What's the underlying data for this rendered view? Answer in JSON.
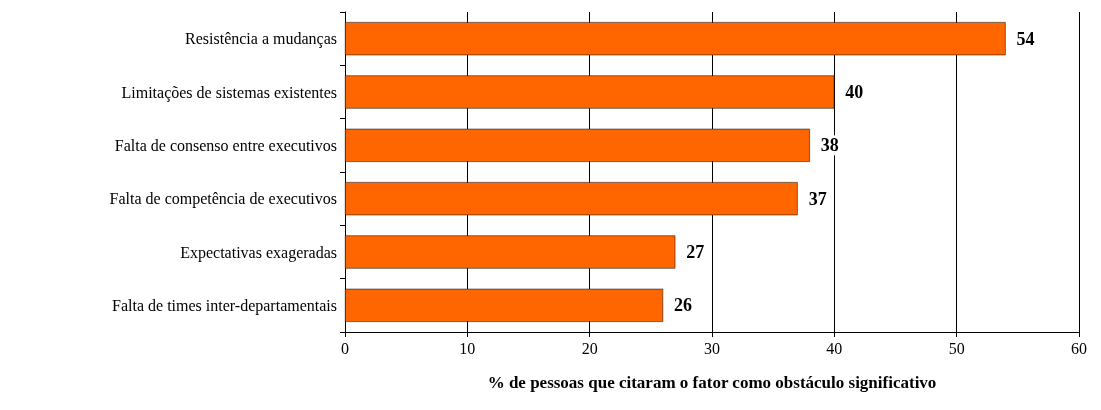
{
  "chart_data": {
    "type": "bar",
    "orientation": "horizontal",
    "xlabel": "% de pessoas que citaram o fator como obstáculo significativo",
    "categories": [
      "Resistência a mudanças",
      "Limitações de sistemas existentes",
      "Falta de consenso entre executivos",
      "Falta de competência de executivos",
      "Expectativas exageradas",
      "Falta de times inter-departamentais"
    ],
    "values": [
      54,
      40,
      38,
      37,
      27,
      26
    ],
    "color": "#ff6600",
    "xlim": [
      0,
      60
    ],
    "xticks": [
      0,
      10,
      20,
      30,
      40,
      50,
      60
    ],
    "grid": "x",
    "data_labels": true
  }
}
